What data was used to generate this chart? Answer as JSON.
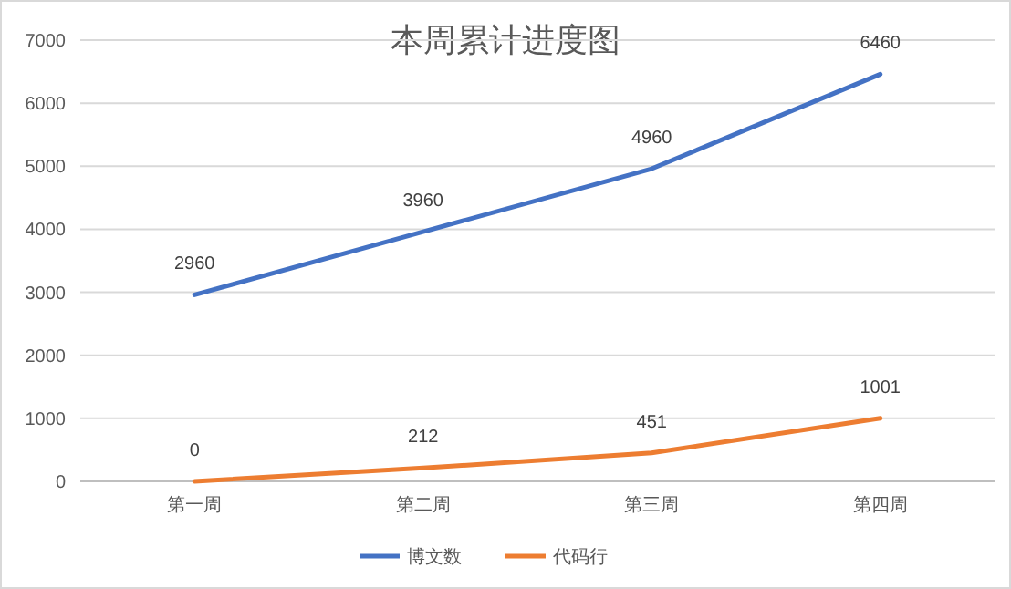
{
  "chart_data": {
    "type": "line",
    "title": "本周累计进度图",
    "categories": [
      "第一周",
      "第二周",
      "第三周",
      "第四周"
    ],
    "series": [
      {
        "name": "博文数",
        "color": "#4472c4",
        "values": [
          2960,
          3960,
          4960,
          6460
        ]
      },
      {
        "name": "代码行",
        "color": "#ed7d31",
        "values": [
          0,
          212,
          451,
          1001
        ]
      }
    ],
    "ylim": [
      0,
      7000
    ],
    "yticks": [
      0,
      1000,
      2000,
      3000,
      4000,
      5000,
      6000,
      7000
    ],
    "grid": "y",
    "legend": "bottom",
    "data_labels": true,
    "marker": "none",
    "line_style": "solid"
  }
}
